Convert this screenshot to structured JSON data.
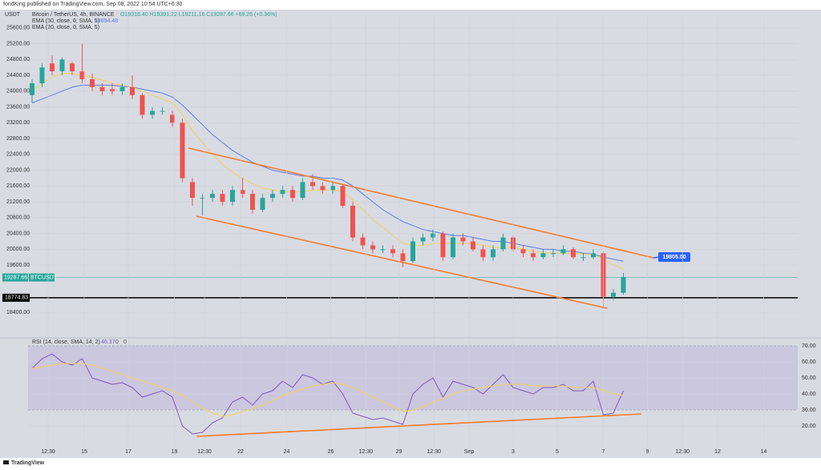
{
  "header": {
    "publisher": "fondKing published on TradingView.com, Sep 08, 2022 10:54 UTC+6:30"
  },
  "footer": {
    "brand": "TradingView"
  },
  "chart_data": [
    {
      "type": "candlestick",
      "legend": {
        "symbol": "Bitcoin / TetherUS, 4h, BINANCE",
        "ohlc_text": "O19318.40 H19391.22 L19211.16 C19287.66 +69.26 (+0.36%)"
      },
      "axis_label": "USDT",
      "up_color": "#26a69a",
      "down_color": "#ef5350",
      "open": [
        23900,
        24200,
        24700,
        24500,
        24700,
        24500,
        24300,
        24100,
        24050,
        24000,
        24100,
        23900,
        23400,
        23500,
        23400,
        23200,
        21700,
        21300,
        21300,
        21400,
        21200,
        21500,
        21400,
        21000,
        21300,
        21400,
        21500,
        21300,
        21700,
        21600,
        21500,
        21600,
        21100,
        20300,
        20100,
        20000,
        20000,
        19900,
        19700,
        20200,
        20300,
        20400,
        19800,
        20300,
        20200,
        20000,
        19800,
        20000,
        20300,
        20000,
        19900,
        19800,
        19900,
        19900,
        20000,
        19800,
        19800,
        19900,
        18800,
        18900
      ],
      "high": [
        24300,
        24700,
        24900,
        24850,
        24750,
        25200,
        24450,
        24200,
        24200,
        24200,
        24400,
        23950,
        23600,
        23600,
        23500,
        23300,
        21800,
        21400,
        21500,
        21500,
        21600,
        21800,
        21500,
        21400,
        21500,
        21600,
        21600,
        21800,
        21900,
        21700,
        21700,
        21650,
        21200,
        20400,
        20200,
        20100,
        20100,
        20000,
        20300,
        20400,
        20500,
        20450,
        20400,
        20400,
        20300,
        20100,
        20100,
        20400,
        20350,
        20100,
        20000,
        20000,
        20000,
        20100,
        20050,
        19900,
        20000,
        19950,
        19000,
        19400
      ],
      "low": [
        23700,
        24100,
        24400,
        24400,
        24400,
        24200,
        24000,
        23900,
        23900,
        23900,
        23800,
        23300,
        23300,
        23400,
        23100,
        21700,
        21100,
        20850,
        21200,
        21100,
        21100,
        21300,
        20900,
        20950,
        21200,
        21300,
        21200,
        21250,
        21500,
        21400,
        21400,
        21050,
        20200,
        20000,
        19900,
        19900,
        19800,
        19550,
        19650,
        20100,
        20200,
        19700,
        19750,
        20100,
        19950,
        19700,
        19700,
        19950,
        19950,
        19800,
        19700,
        19750,
        19800,
        19850,
        19750,
        19700,
        19750,
        18500,
        18700,
        18850
      ],
      "close": [
        24200,
        24600,
        24500,
        24800,
        24500,
        24300,
        24100,
        24000,
        24000,
        24100,
        23900,
        23400,
        23500,
        23500,
        23200,
        21800,
        21300,
        21300,
        21400,
        21200,
        21500,
        21400,
        21000,
        21300,
        21400,
        21500,
        21300,
        21700,
        21600,
        21500,
        21600,
        21100,
        20300,
        20100,
        20000,
        20000,
        19900,
        19700,
        20200,
        20300,
        20400,
        19800,
        20300,
        20200,
        20000,
        19800,
        20000,
        20300,
        20000,
        19900,
        19800,
        19900,
        19900,
        20000,
        19800,
        19800,
        19900,
        18800,
        18900,
        19300
      ],
      "series": [
        {
          "name": "EMA (50, close, 0, SMA, 5)",
          "value_text": "19894.48",
          "color": "#5b7ce6",
          "values": [
            23700,
            23800,
            23900,
            24000,
            24100,
            24150,
            24150,
            24150,
            24150,
            24120,
            24100,
            24050,
            24000,
            23950,
            23850,
            23650,
            23400,
            23150,
            22900,
            22700,
            22500,
            22350,
            22200,
            22100,
            22000,
            21950,
            21900,
            21850,
            21850,
            21800,
            21800,
            21750,
            21600,
            21400,
            21200,
            21000,
            20850,
            20700,
            20600,
            20500,
            20450,
            20400,
            20350,
            20350,
            20300,
            20250,
            20200,
            20200,
            20150,
            20100,
            20050,
            20000,
            20000,
            19950,
            19950,
            19900,
            19880,
            19800,
            19750,
            19700
          ]
        },
        {
          "name": "EMA (20, close, 0, SMA, 5)",
          "color": "#f2d25c",
          "values": [
            24000,
            24200,
            24350,
            24450,
            24450,
            24400,
            24350,
            24280,
            24200,
            24150,
            24100,
            24000,
            23900,
            23800,
            23700,
            23400,
            23000,
            22700,
            22400,
            22150,
            21950,
            21800,
            21650,
            21550,
            21500,
            21450,
            21450,
            21450,
            21500,
            21500,
            21500,
            21450,
            21250,
            21000,
            20750,
            20550,
            20350,
            20150,
            20100,
            20100,
            20150,
            20150,
            20150,
            20150,
            20150,
            20100,
            20050,
            20050,
            20050,
            20000,
            19950,
            19900,
            19900,
            19900,
            19900,
            19880,
            19870,
            19750,
            19600,
            19500
          ]
        }
      ],
      "trendlines": [
        {
          "x": [
            15.6,
            62
          ],
          "y": [
            22560,
            19784
          ],
          "color": "#f57c2b"
        },
        {
          "x": [
            16.4,
            57.4
          ],
          "y": [
            20837,
            18508
          ],
          "color": "#f57c2b"
        }
      ],
      "callout": {
        "value": 19805,
        "label": "19805.00",
        "color": "#2962ff"
      },
      "last_price": 19287.66,
      "symbol": "BTCUSDT",
      "last_color": "#26a69a",
      "hline": 18774.83,
      "hline_color": "#000000",
      "xlim": [
        -0.4,
        76.4
      ],
      "ylim": [
        17800,
        25900
      ],
      "yticks": [
        {
          "value": 18400,
          "label": "18400.00"
        },
        {
          "value": 19600,
          "label": "19600.00"
        },
        {
          "value": 20000,
          "label": "20000.00"
        },
        {
          "value": 20400,
          "label": "20400.00"
        },
        {
          "value": 20800,
          "label": "20800.00"
        },
        {
          "value": 21200,
          "label": "21200.00"
        },
        {
          "value": 21600,
          "label": "21600.00"
        },
        {
          "value": 22000,
          "label": "22000.00"
        },
        {
          "value": 22400,
          "label": "22400.00"
        },
        {
          "value": 22800,
          "label": "22800.00"
        },
        {
          "value": 23200,
          "label": "23200.00"
        },
        {
          "value": 23600,
          "label": "23600.00"
        },
        {
          "value": 24000,
          "label": "24000.00"
        },
        {
          "value": 24400,
          "label": "24400.00"
        },
        {
          "value": 24800,
          "label": "24800.00"
        },
        {
          "value": 25200,
          "label": "25200.00"
        },
        {
          "value": 25600,
          "label": "25600.00"
        }
      ],
      "grid": true
    },
    {
      "type": "line",
      "legend": {
        "name": "RSI (14, close, SMA, 14, 2)",
        "values": [
          46.37,
          0,
          0
        ]
      },
      "series": [
        {
          "name": "RSI (14, close, SMA, 14, 2)",
          "color": "#7e57c2",
          "values": [
            56,
            62,
            65,
            60,
            58,
            62,
            50,
            48,
            46,
            47,
            44,
            38,
            40,
            42,
            38,
            20,
            15,
            16,
            22,
            25,
            35,
            38,
            33,
            40,
            42,
            48,
            44,
            52,
            50,
            46,
            48,
            40,
            28,
            26,
            24,
            25,
            23,
            21,
            40,
            46,
            50,
            38,
            48,
            46,
            44,
            40,
            46,
            52,
            44,
            42,
            40,
            44,
            44,
            46,
            42,
            42,
            48,
            27,
            28,
            42
          ]
        },
        {
          "color": "#f2d25c",
          "values": [
            56,
            57,
            58,
            59,
            59,
            59,
            58,
            56,
            54,
            52,
            50,
            48,
            46,
            44,
            42,
            39,
            35,
            31,
            28,
            26,
            27,
            29,
            31,
            33,
            36,
            39,
            41,
            43,
            45,
            46,
            47,
            46,
            44,
            41,
            38,
            35,
            32,
            29,
            30,
            32,
            35,
            37,
            40,
            42,
            43,
            44,
            45,
            46,
            46,
            46,
            45,
            45,
            45,
            45,
            44,
            44,
            44,
            42,
            40,
            39
          ]
        }
      ],
      "band": [
        30,
        70
      ],
      "band_color": "#7e57c2",
      "trendlines": [
        {
          "x": [
            16.4,
            60.8
          ],
          "y": [
            13.5,
            27.5
          ],
          "color": "#f57c2b"
        }
      ],
      "xlim": [
        -0.4,
        76.4
      ],
      "ylim": [
        7,
        73.5
      ],
      "yticks": [
        {
          "value": 20,
          "label": "20.00"
        },
        {
          "value": 30,
          "label": "30.00"
        },
        {
          "value": 40,
          "label": "40.00"
        },
        {
          "value": 50,
          "label": "50.00"
        },
        {
          "value": 60,
          "label": "60.00"
        },
        {
          "value": 70,
          "label": "70.00"
        }
      ],
      "xticks": [
        {
          "value": 1.6,
          "label": "12:30"
        },
        {
          "value": 5.2,
          "label": "15"
        },
        {
          "value": 9.6,
          "label": "17"
        },
        {
          "value": 14.2,
          "label": "19"
        },
        {
          "value": 17.2,
          "label": "12:30"
        },
        {
          "value": 20.8,
          "label": "22"
        },
        {
          "value": 25.4,
          "label": "24"
        },
        {
          "value": 29.8,
          "label": "26"
        },
        {
          "value": 33.3,
          "label": "12:30"
        },
        {
          "value": 36.6,
          "label": "29"
        },
        {
          "value": 40.1,
          "label": "12:30"
        },
        {
          "value": 43.6,
          "label": "Sep"
        },
        {
          "value": 48,
          "label": "3"
        },
        {
          "value": 52.4,
          "label": "5"
        },
        {
          "value": 57,
          "label": "7"
        },
        {
          "value": 61.4,
          "label": "9"
        },
        {
          "value": 64.9,
          "label": "12:30"
        },
        {
          "value": 68.4,
          "label": "12"
        },
        {
          "value": 73,
          "label": "14"
        }
      ],
      "grid": true
    }
  ]
}
